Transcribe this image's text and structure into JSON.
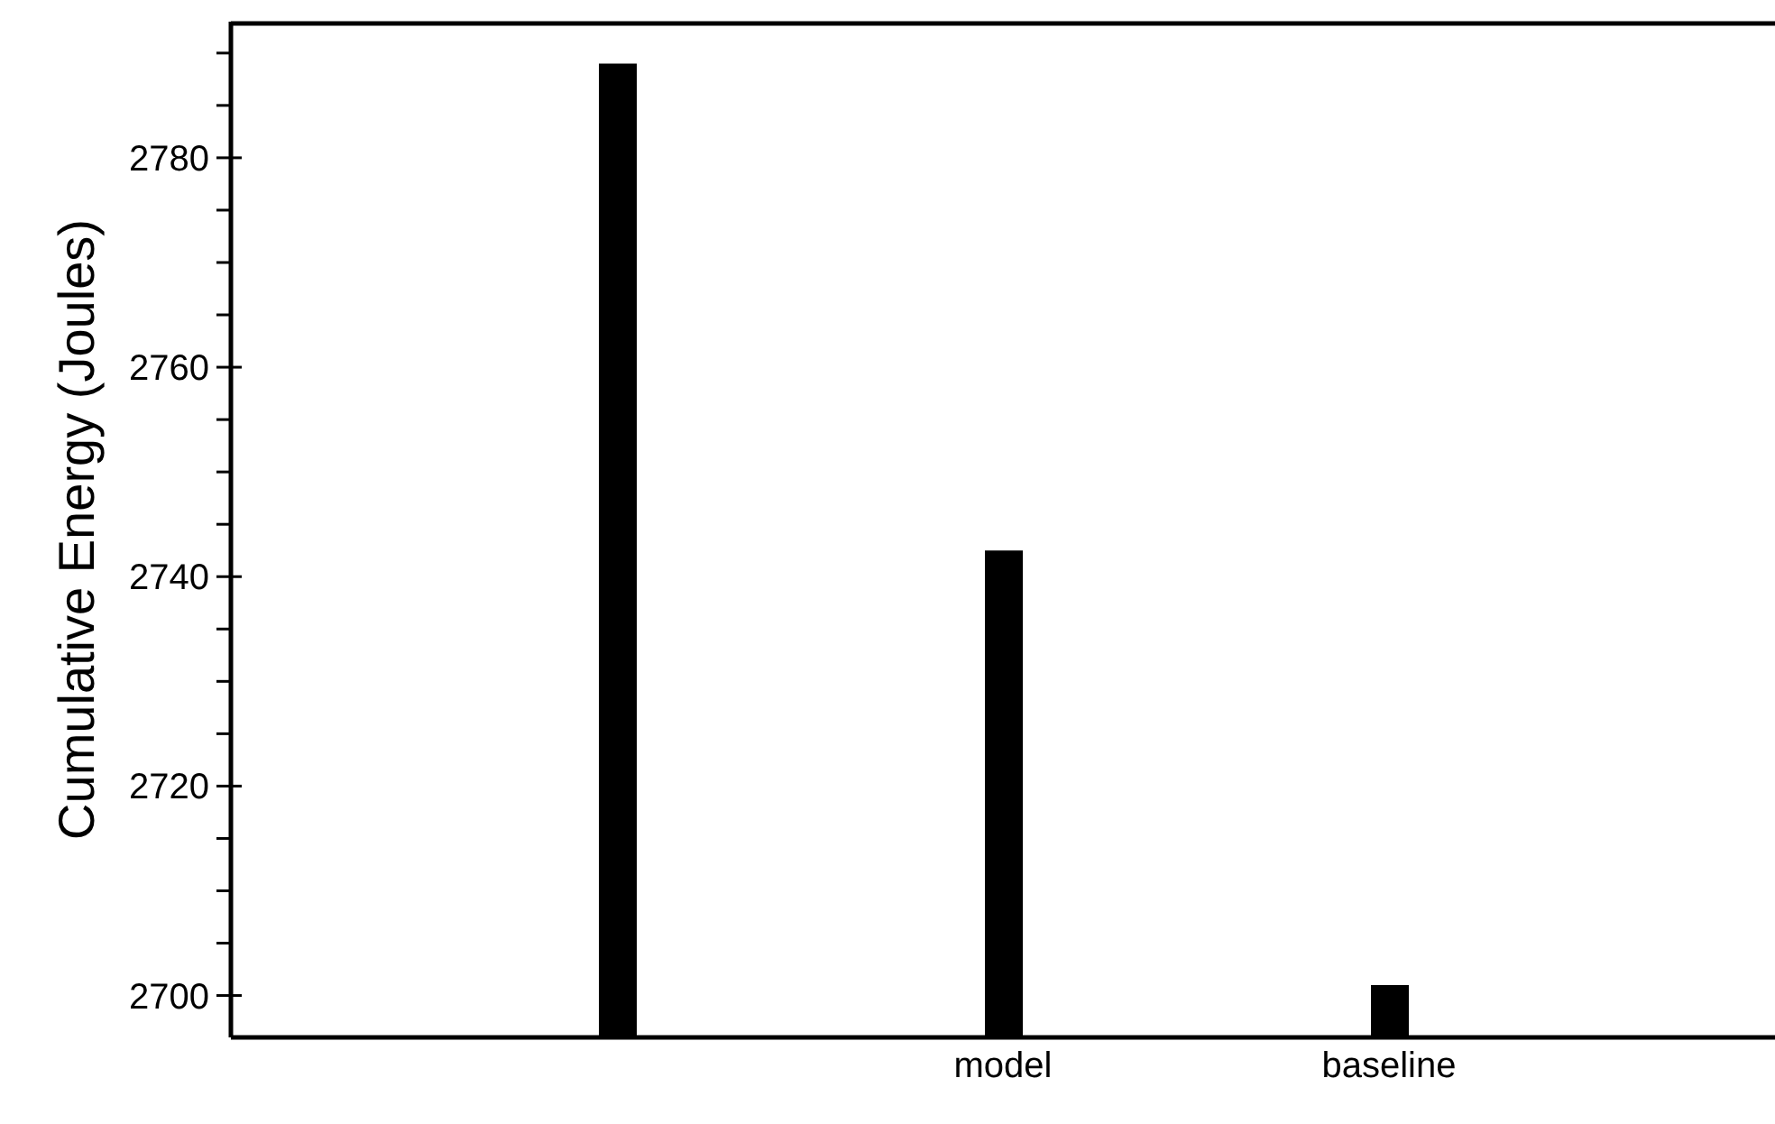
{
  "chart_data": {
    "type": "bar",
    "ylabel": "Cumulative Energy (Joules)",
    "categories": [
      null,
      "model",
      "baseline"
    ],
    "values": [
      2789,
      2742.5,
      2701
    ],
    "color": "#000000",
    "ylim": [
      2696,
      2793
    ],
    "yticks": [
      2700,
      {
        "value": 2705,
        "label": null
      },
      {
        "value": 2710,
        "label": null
      },
      {
        "value": 2715,
        "label": null
      },
      2720,
      {
        "value": 2725,
        "label": null
      },
      {
        "value": 2730,
        "label": null
      },
      {
        "value": 2735,
        "label": null
      },
      2740,
      {
        "value": 2745,
        "label": null
      },
      {
        "value": 2750,
        "label": null
      },
      {
        "value": 2755,
        "label": null
      },
      2760,
      {
        "value": 2765,
        "label": null
      },
      {
        "value": 2770,
        "label": null
      },
      {
        "value": 2775,
        "label": null
      },
      2780,
      {
        "value": 2785,
        "label": null
      },
      {
        "value": 2790,
        "label": null
      }
    ]
  }
}
